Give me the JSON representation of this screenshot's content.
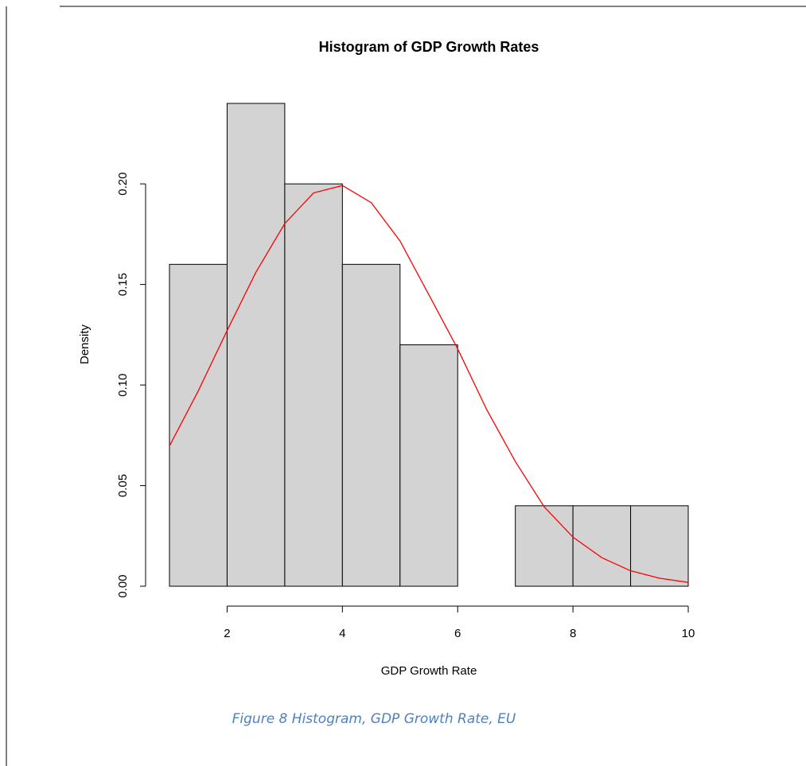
{
  "chart_data": {
    "type": "histogram",
    "title": "Histogram of GDP Growth Rates",
    "x_label": "GDP Growth Rate",
    "y_label": "Density",
    "bins": [
      1,
      2,
      3,
      4,
      5,
      6,
      7,
      8,
      9,
      10
    ],
    "values": [
      0.16,
      0.24,
      0.2,
      0.16,
      0.12,
      0,
      0.04,
      0.04,
      0.04
    ],
    "color": "#d3d3d3",
    "curve": {
      "color": "#ff0000",
      "x": [
        1,
        1.5,
        2,
        2.5,
        3,
        3.5,
        4,
        4.5,
        5,
        5.5,
        6,
        6.5,
        7,
        7.5,
        8,
        8.5,
        9,
        9.5,
        10
      ],
      "values": [
        0.0697,
        0.0971,
        0.1271,
        0.1561,
        0.1803,
        0.1955,
        0.1992,
        0.1907,
        0.1716,
        0.1449,
        0.118,
        0.088,
        0.062,
        0.0395,
        0.0244,
        0.0142,
        0.0077,
        0.004,
        0.0019
      ]
    },
    "xlim": [
      1,
      10
    ],
    "ylim": [
      0,
      0.24
    ],
    "xticks": [
      2,
      4,
      6,
      8,
      10
    ],
    "yticks": [
      {
        "value": 0,
        "label": "0.00"
      },
      {
        "value": 0.05,
        "label": "0.05"
      },
      {
        "value": 0.1,
        "label": "0.10"
      },
      {
        "value": 0.15,
        "label": "0.15"
      },
      {
        "value": 0.2,
        "label": "0.20"
      }
    ]
  },
  "caption": "Figure 8 Histogram, GDP Growth Rate, EU"
}
